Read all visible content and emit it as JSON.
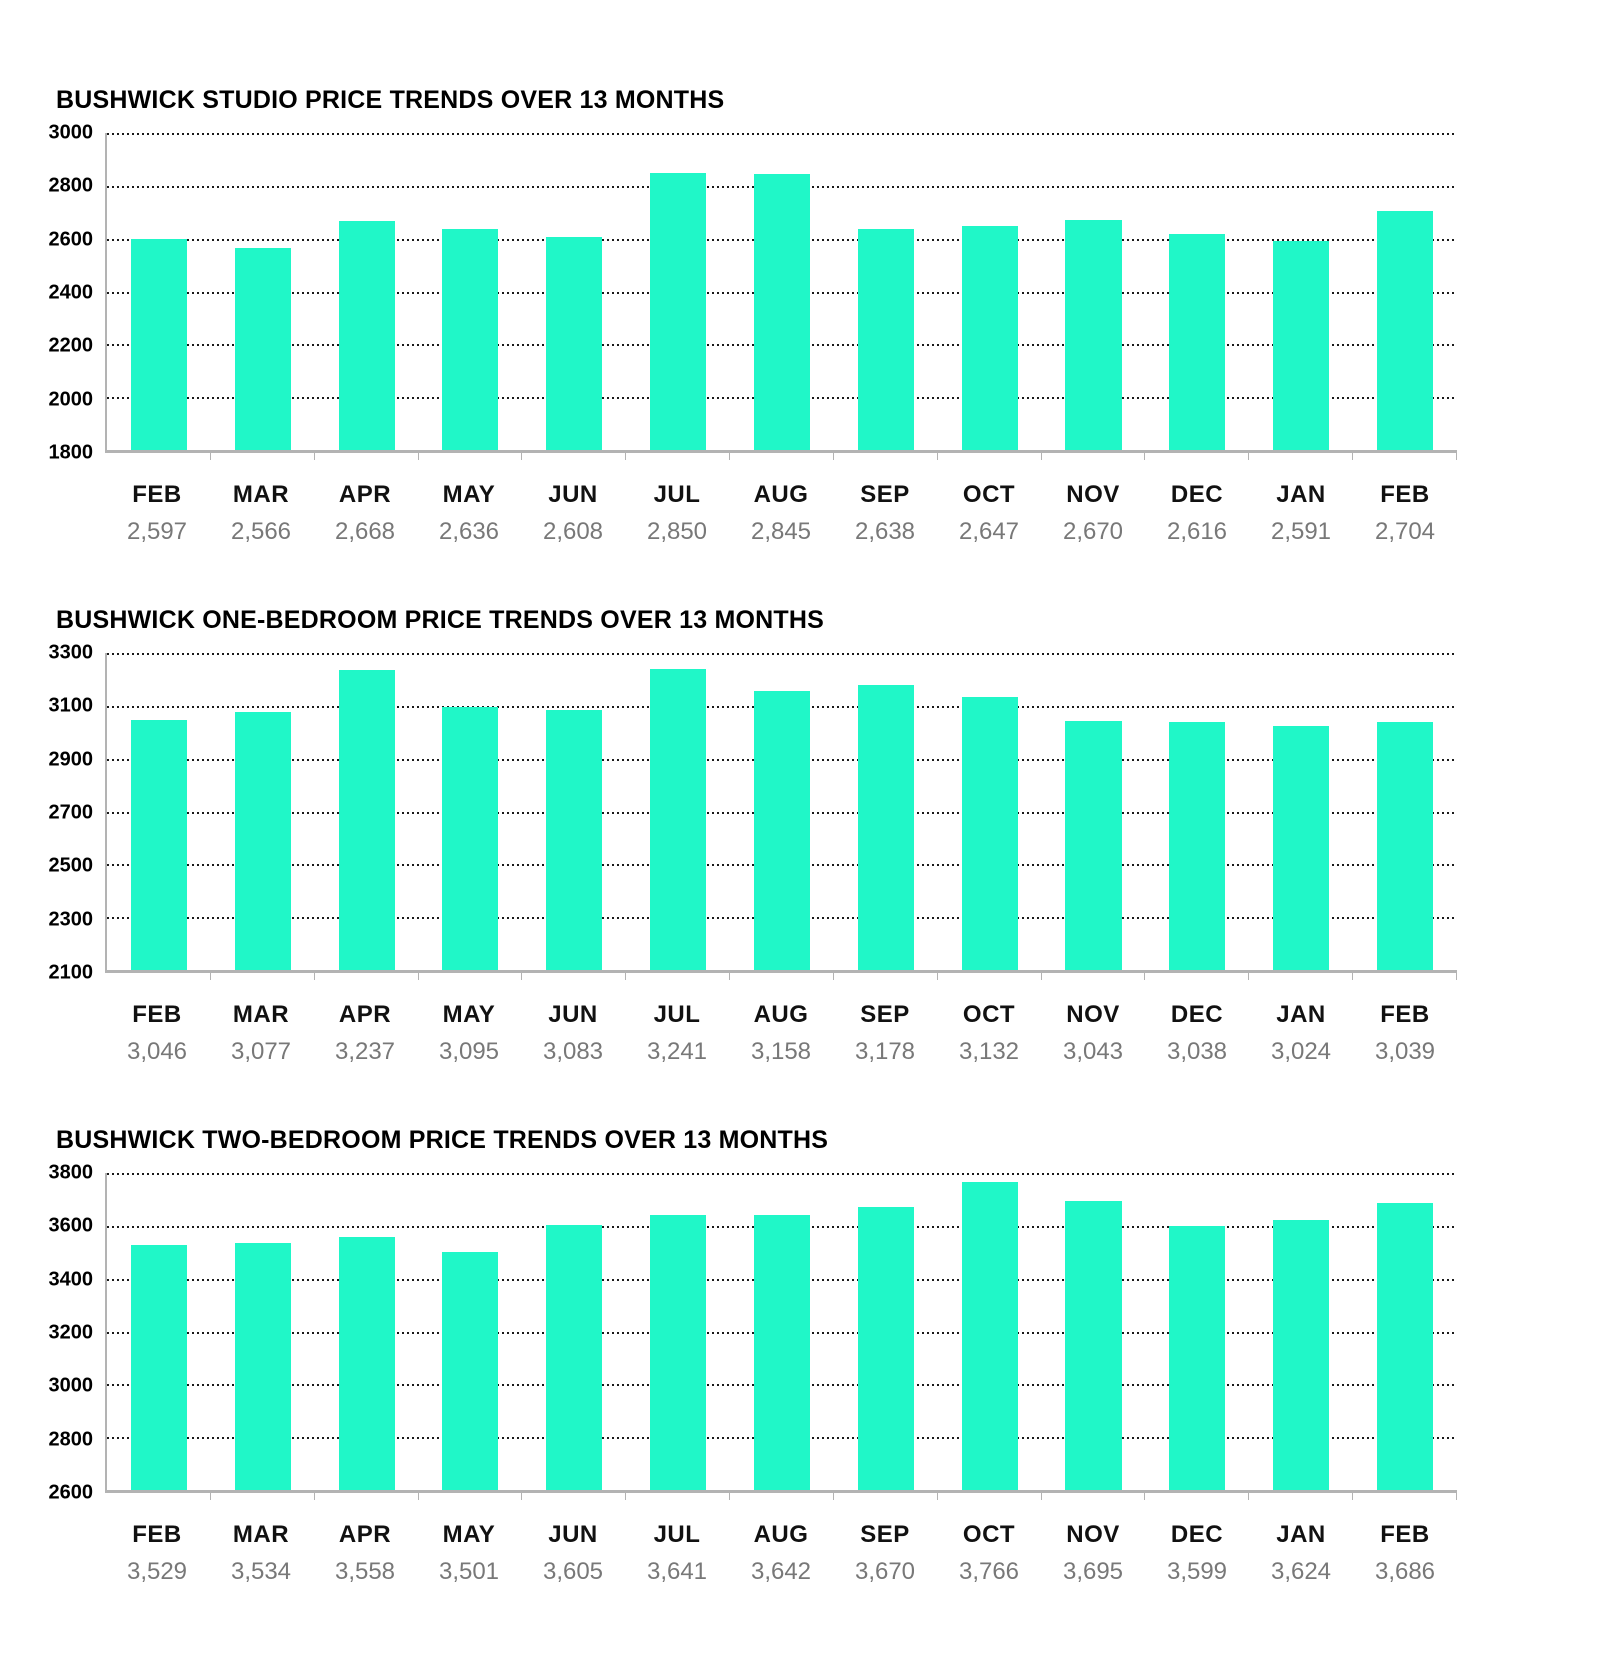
{
  "page": {
    "background": "#ffffff"
  },
  "colors": {
    "bar": "#20f7c8",
    "grid": "#1a1a1a",
    "axis": "#b3b3b3",
    "title": "#000000",
    "month_label": "#111111",
    "value_label": "#787878"
  },
  "chart_data": [
    {
      "type": "bar",
      "title": "BUSHWICK STUDIO PRICE TRENDS OVER 13 MONTHS",
      "categories": [
        "FEB",
        "MAR",
        "APR",
        "MAY",
        "JUN",
        "JUL",
        "AUG",
        "SEP",
        "OCT",
        "NOV",
        "DEC",
        "JAN",
        "FEB"
      ],
      "values": [
        2597,
        2566,
        2668,
        2636,
        2608,
        2850,
        2845,
        2638,
        2647,
        2670,
        2616,
        2591,
        2704
      ],
      "value_labels": [
        "2,597",
        "2,566",
        "2,668",
        "2,636",
        "2,608",
        "2,850",
        "2,845",
        "2,638",
        "2,647",
        "2,670",
        "2,616",
        "2,591",
        "2,704"
      ],
      "ylim": [
        1800,
        3000
      ],
      "yticks": [
        1800,
        2000,
        2200,
        2400,
        2600,
        2800,
        3000
      ],
      "xlabel": "",
      "ylabel": "",
      "legend": "none",
      "grid": "horizontal-dotted"
    },
    {
      "type": "bar",
      "title": "BUSHWICK ONE-BEDROOM PRICE TRENDS OVER 13 MONTHS",
      "categories": [
        "FEB",
        "MAR",
        "APR",
        "MAY",
        "JUN",
        "JUL",
        "AUG",
        "SEP",
        "OCT",
        "NOV",
        "DEC",
        "JAN",
        "FEB"
      ],
      "values": [
        3046,
        3077,
        3237,
        3095,
        3083,
        3241,
        3158,
        3178,
        3132,
        3043,
        3038,
        3024,
        3039
      ],
      "value_labels": [
        "3,046",
        "3,077",
        "3,237",
        "3,095",
        "3,083",
        "3,241",
        "3,158",
        "3,178",
        "3,132",
        "3,043",
        "3,038",
        "3,024",
        "3,039"
      ],
      "ylim": [
        2100,
        3300
      ],
      "yticks": [
        2100,
        2300,
        2500,
        2700,
        2900,
        3100,
        3300
      ],
      "xlabel": "",
      "ylabel": "",
      "legend": "none",
      "grid": "horizontal-dotted"
    },
    {
      "type": "bar",
      "title": "BUSHWICK TWO-BEDROOM PRICE TRENDS OVER 13 MONTHS",
      "categories": [
        "FEB",
        "MAR",
        "APR",
        "MAY",
        "JUN",
        "JUL",
        "AUG",
        "SEP",
        "OCT",
        "NOV",
        "DEC",
        "JAN",
        "FEB"
      ],
      "values": [
        3529,
        3534,
        3558,
        3501,
        3605,
        3641,
        3642,
        3670,
        3766,
        3695,
        3599,
        3624,
        3686
      ],
      "value_labels": [
        "3,529",
        "3,534",
        "3,558",
        "3,501",
        "3,605",
        "3,641",
        "3,642",
        "3,670",
        "3,766",
        "3,695",
        "3,599",
        "3,624",
        "3,686"
      ],
      "ylim": [
        2600,
        3800
      ],
      "yticks": [
        2600,
        2800,
        3000,
        3200,
        3400,
        3600,
        3800
      ],
      "xlabel": "",
      "ylabel": "",
      "legend": "none",
      "grid": "horizontal-dotted"
    }
  ]
}
